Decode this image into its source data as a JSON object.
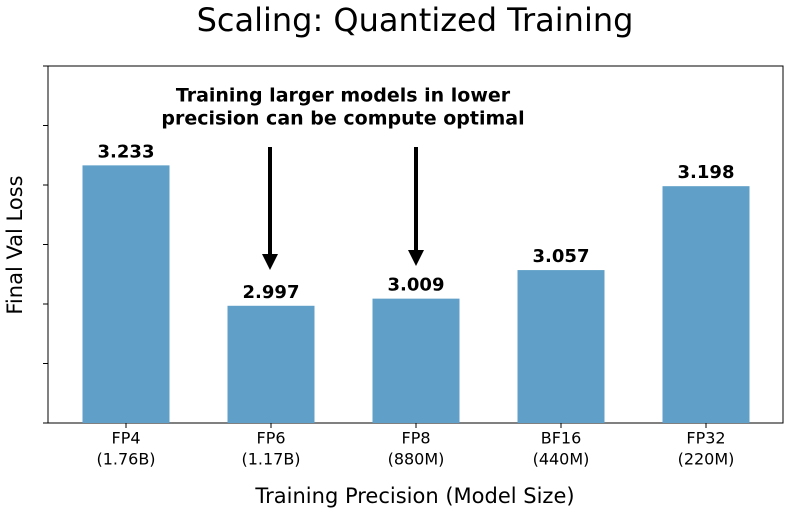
{
  "chart_data": {
    "type": "bar",
    "title": "Scaling: Quantized Training",
    "xlabel": "Training Precision (Model Size)",
    "ylabel": "Final Val Loss",
    "categories": [
      [
        "FP4",
        "(1.76B)"
      ],
      [
        "FP6",
        "(1.17B)"
      ],
      [
        "FP8",
        "(880M)"
      ],
      [
        "BF16",
        "(440M)"
      ],
      [
        "FP32",
        "(220M)"
      ]
    ],
    "values": [
      3.233,
      2.997,
      3.009,
      3.057,
      3.198
    ],
    "color": "#5f9fc8",
    "ylim": [
      2.8,
      3.4
    ],
    "yticks": [
      2.8,
      2.9,
      3.0,
      3.1,
      3.2,
      3.3,
      3.4
    ],
    "annotation": [
      "Training larger models in lower",
      "precision can be compute optimal"
    ]
  }
}
